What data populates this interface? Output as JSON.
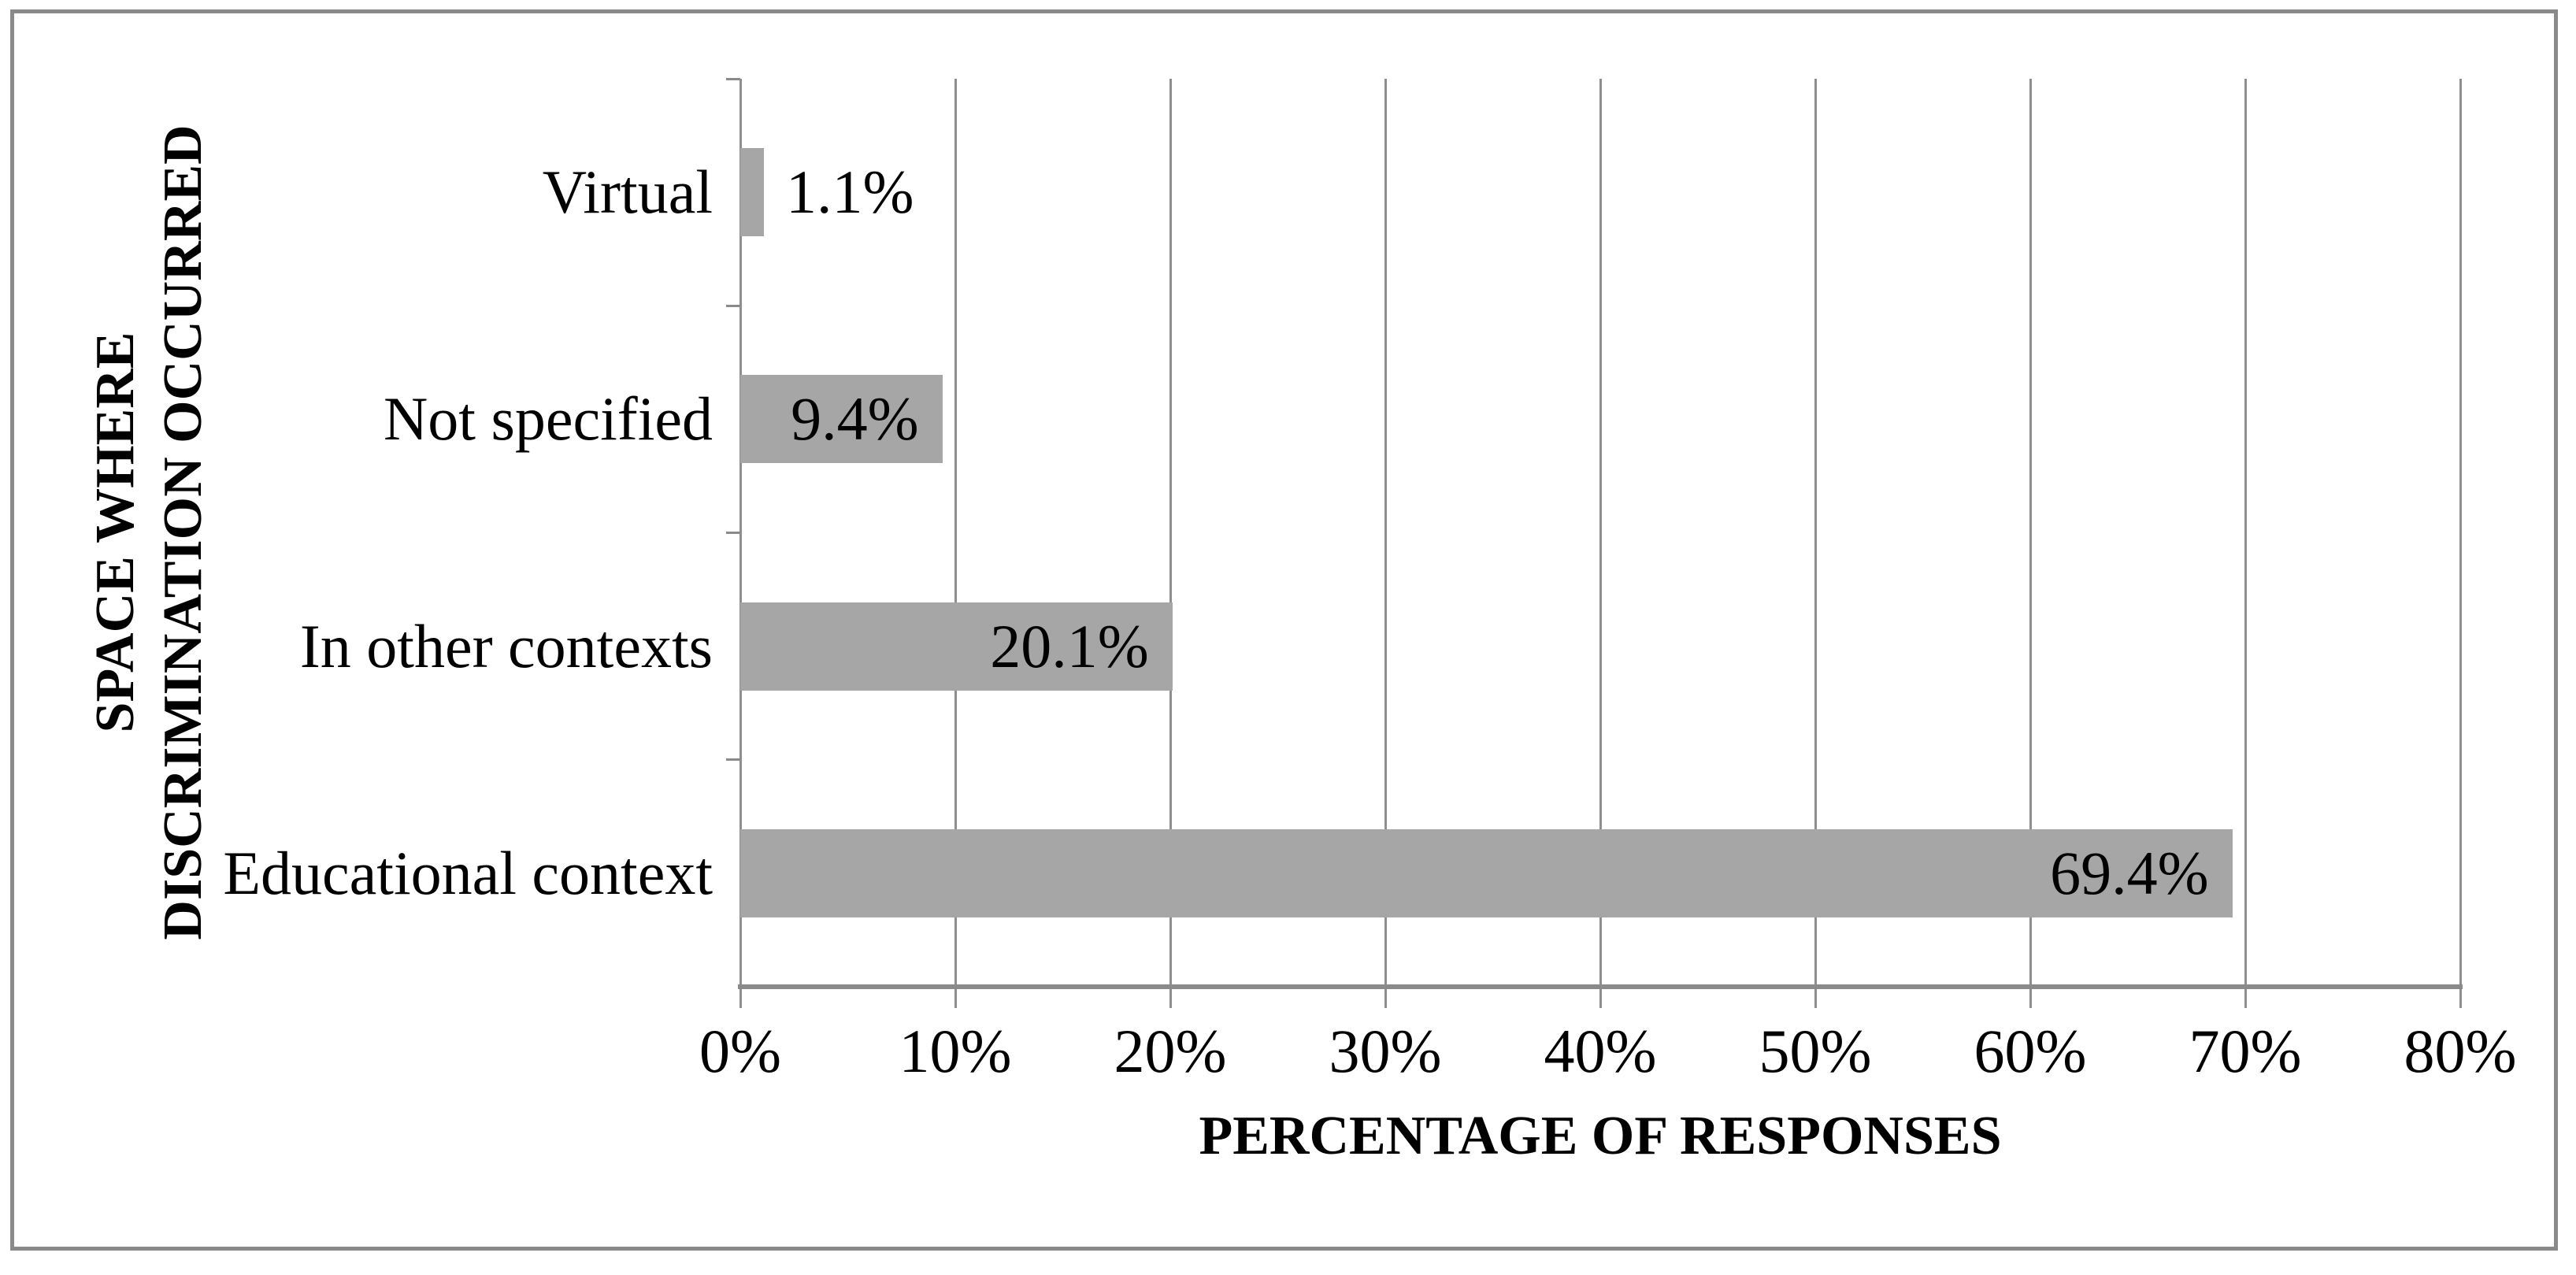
{
  "chart_data": {
    "type": "bar",
    "orientation": "horizontal",
    "categories": [
      "Virtual",
      "Not specified",
      "In other contexts",
      "Educational context"
    ],
    "values": [
      1.1,
      9.4,
      20.1,
      69.4
    ],
    "value_labels": [
      "1.1%",
      "9.4%",
      "20.1%",
      "69.4%"
    ],
    "label_placement": [
      "outside",
      "inside",
      "inside",
      "inside"
    ],
    "xlabel": "PERCENTAGE OF RESPONSES",
    "ylabel_lines": [
      "SPACE WHERE",
      "DISCRIMINATION OCCURRED"
    ],
    "xlim": [
      0,
      80
    ],
    "xtick_values": [
      0,
      10,
      20,
      30,
      40,
      50,
      60,
      70,
      80
    ],
    "xtick_labels": [
      "0%",
      "10%",
      "20%",
      "30%",
      "40%",
      "50%",
      "60%",
      "70%",
      "80%"
    ],
    "grid": true,
    "legend": false,
    "colors": {
      "bar": "#a6a6a6",
      "gridline": "#8e8e8e",
      "axis": "#8a8a8a",
      "frame_border": "#8a8a8a",
      "text": "#000000",
      "background": "#ffffff"
    }
  }
}
